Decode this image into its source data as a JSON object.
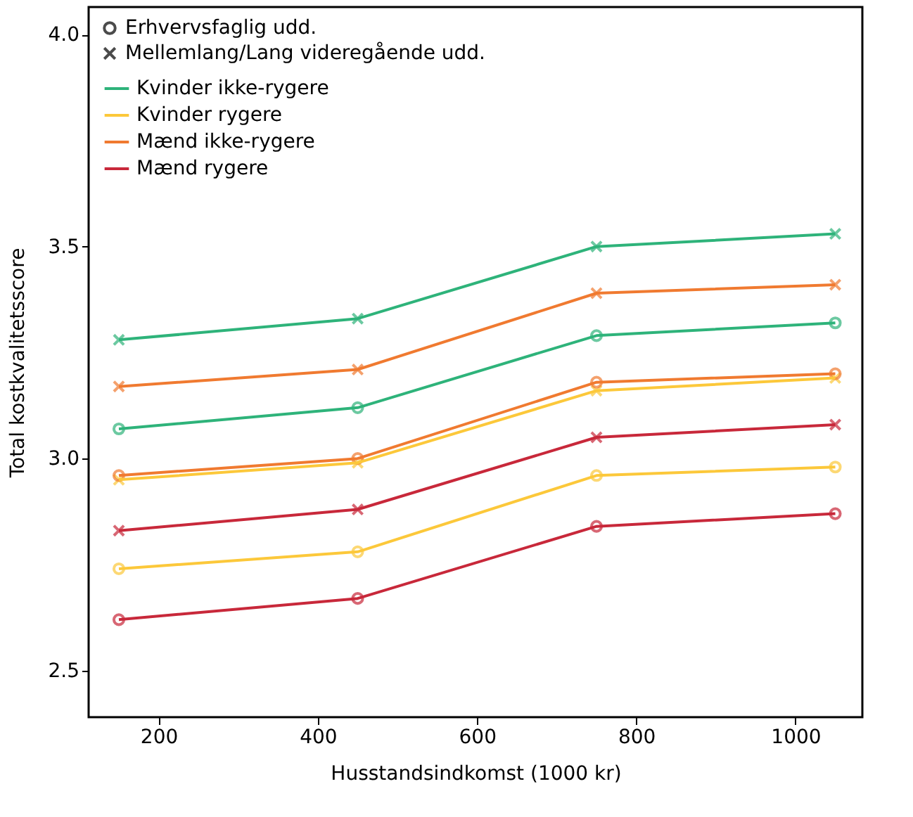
{
  "chart_data": {
    "type": "line",
    "xlabel": "Husstandsindkomst (1000 kr)",
    "ylabel": "Total kostkvalitetsscore",
    "x": [
      150,
      450,
      750,
      1050
    ],
    "xlim": [
      112,
      1084
    ],
    "xticks": [
      200,
      400,
      600,
      800,
      1000
    ],
    "ylim": [
      2.39,
      4.065
    ],
    "yticks": [
      2.5,
      {
        "value": 3.0,
        "label": "3.0"
      },
      3.5,
      {
        "value": 4.0,
        "label": "4.0"
      }
    ],
    "grid": false,
    "legend": "top left",
    "line_style": "solid",
    "series": [
      {
        "name": "Erhvervsfaglig udd.",
        "type": "scatter",
        "marker": "circle",
        "color": "#000000",
        "values": [
          null,
          null,
          null,
          null
        ]
      },
      {
        "name": "Mellemlang/Lang videregående udd.",
        "type": "scatter",
        "marker": "cross",
        "color": "#000000",
        "values": [
          null,
          null,
          null,
          null
        ]
      },
      {
        "name": "Kvinder ikke-rygere",
        "marker": "cross",
        "color": "#2eb37a",
        "values": [
          3.28,
          3.33,
          3.5,
          3.53
        ]
      },
      {
        "marker": "circle",
        "color": "#2eb37a",
        "values": [
          3.07,
          3.12,
          3.29,
          3.32
        ]
      },
      {
        "name": "Kvinder rygere",
        "marker": "cross",
        "color": "#fcc83a",
        "values": [
          2.95,
          2.99,
          3.16,
          3.19
        ]
      },
      {
        "marker": "circle",
        "color": "#fcc83a",
        "values": [
          2.74,
          2.78,
          2.96,
          2.98
        ]
      },
      {
        "name": "Mænd ikke-rygere",
        "marker": "cross",
        "color": "#f07a30",
        "values": [
          3.17,
          3.21,
          3.39,
          3.41
        ]
      },
      {
        "marker": "circle",
        "color": "#f07a30",
        "values": [
          2.96,
          3.0,
          3.18,
          3.2
        ]
      },
      {
        "name": "Mænd rygere",
        "marker": "cross",
        "color": "#c8283a",
        "values": [
          2.83,
          2.88,
          3.05,
          3.08
        ]
      },
      {
        "marker": "circle",
        "color": "#c8283a",
        "values": [
          2.62,
          2.67,
          2.84,
          2.87
        ]
      }
    ]
  }
}
